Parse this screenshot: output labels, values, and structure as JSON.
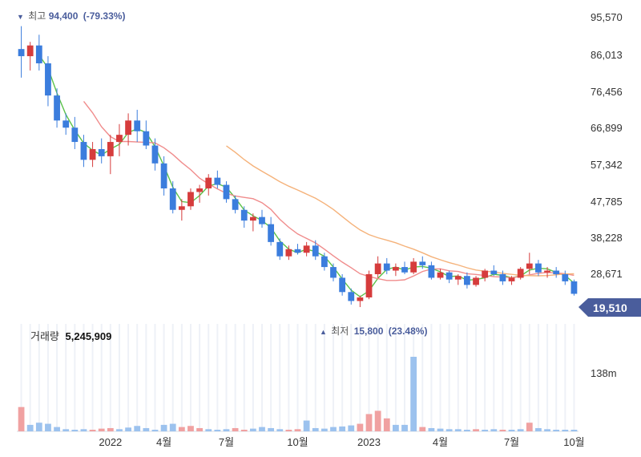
{
  "chart_data": {
    "type": "candlestick",
    "price_axis": {
      "ticks": [
        "95,570",
        "86,013",
        "76,456",
        "66,899",
        "57,342",
        "47,785",
        "38,228",
        "28,671"
      ],
      "ylim": [
        15800,
        95570
      ]
    },
    "current_price": {
      "label": "19,510",
      "value": 19510,
      "color": "#4a5d9c"
    },
    "high_annotation": {
      "marker": "▼",
      "label": "최고",
      "value": "94,400",
      "change": "(-79.33%)"
    },
    "low_annotation": {
      "marker": "▲",
      "label": "최저",
      "value": "15,800",
      "change": "(23.48%)"
    },
    "volume": {
      "label": "거래량",
      "value": "5,245,909",
      "axis_tick": "138m",
      "axis_max": 138
    },
    "x_ticks": [
      "2022",
      "4월",
      "7월",
      "10월",
      "2023",
      "4월",
      "7월",
      "10월"
    ],
    "colors": {
      "up": "#d63c3c",
      "down": "#3b7ddd",
      "ma_short": "#5cc24a",
      "ma_mid": "#f08c8c",
      "ma_long": "#f5b27a"
    },
    "candles": [
      [
        88000,
        94400,
        80000,
        86000
      ],
      [
        86000,
        90000,
        82000,
        89000
      ],
      [
        89000,
        92000,
        82000,
        84000
      ],
      [
        84000,
        86000,
        72000,
        75000
      ],
      [
        75000,
        77000,
        66000,
        68000
      ],
      [
        68000,
        70000,
        64000,
        66000
      ],
      [
        66000,
        69000,
        60000,
        62000
      ],
      [
        62000,
        64000,
        55000,
        57000
      ],
      [
        57000,
        62000,
        55000,
        60000
      ],
      [
        60000,
        63000,
        56000,
        58000
      ],
      [
        58000,
        64000,
        53000,
        62000
      ],
      [
        62000,
        67000,
        58000,
        64000
      ],
      [
        64000,
        70000,
        61000,
        68000
      ],
      [
        68000,
        71000,
        62000,
        65000
      ],
      [
        65000,
        68000,
        60000,
        61000
      ],
      [
        61000,
        63000,
        54000,
        56000
      ],
      [
        56000,
        58000,
        47000,
        49000
      ],
      [
        49000,
        51000,
        42000,
        43000
      ],
      [
        43000,
        46000,
        40000,
        44000
      ],
      [
        44000,
        49000,
        43000,
        48000
      ],
      [
        48000,
        50000,
        45000,
        49000
      ],
      [
        49000,
        53000,
        47000,
        52000
      ],
      [
        52000,
        54000,
        49000,
        50000
      ],
      [
        50000,
        51000,
        45000,
        46000
      ],
      [
        46000,
        47000,
        42000,
        43000
      ],
      [
        43000,
        44000,
        38000,
        40000
      ],
      [
        40000,
        42000,
        37000,
        41000
      ],
      [
        41000,
        43000,
        38000,
        39000
      ],
      [
        39000,
        41000,
        33000,
        34000
      ],
      [
        34000,
        35000,
        29000,
        30000
      ],
      [
        30000,
        33000,
        29000,
        32000
      ],
      [
        32000,
        33500,
        30500,
        31000
      ],
      [
        31000,
        34000,
        30000,
        33000
      ],
      [
        33000,
        34500,
        29000,
        30000
      ],
      [
        30000,
        31000,
        26000,
        27000
      ],
      [
        27000,
        28000,
        23000,
        24000
      ],
      [
        24000,
        25000,
        19000,
        20000
      ],
      [
        20000,
        21000,
        16500,
        17500
      ],
      [
        17500,
        19000,
        15800,
        18500
      ],
      [
        18500,
        26000,
        18000,
        25000
      ],
      [
        25000,
        30000,
        24000,
        28000
      ],
      [
        28000,
        29500,
        25000,
        26000
      ],
      [
        26000,
        28000,
        24500,
        27000
      ],
      [
        27000,
        28500,
        25000,
        25500
      ],
      [
        25500,
        29500,
        25000,
        28500
      ],
      [
        28500,
        30000,
        26500,
        27500
      ],
      [
        27500,
        28500,
        23500,
        24000
      ],
      [
        24000,
        26500,
        23500,
        25500
      ],
      [
        25500,
        26000,
        22500,
        23500
      ],
      [
        23500,
        25000,
        22000,
        24500
      ],
      [
        24500,
        25500,
        21000,
        22000
      ],
      [
        22000,
        24500,
        21500,
        24000
      ],
      [
        24000,
        26500,
        23000,
        26000
      ],
      [
        26000,
        27500,
        24500,
        25000
      ],
      [
        25000,
        26000,
        22000,
        23000
      ],
      [
        23000,
        24500,
        22000,
        24000
      ],
      [
        24000,
        27000,
        23500,
        26500
      ],
      [
        26500,
        31000,
        25000,
        28000
      ],
      [
        28000,
        29000,
        24500,
        25500
      ],
      [
        25500,
        27000,
        24000,
        26000
      ],
      [
        26000,
        27000,
        24000,
        25000
      ],
      [
        25000,
        26000,
        22000,
        23000
      ],
      [
        23000,
        23500,
        19000,
        19510
      ]
    ],
    "volume_bars": [
      [
        45,
        "up"
      ],
      [
        12,
        "down"
      ],
      [
        16,
        "down"
      ],
      [
        14,
        "down"
      ],
      [
        8,
        "down"
      ],
      [
        4,
        "down"
      ],
      [
        3,
        "down"
      ],
      [
        4,
        "down"
      ],
      [
        3,
        "up"
      ],
      [
        5,
        "up"
      ],
      [
        6,
        "up"
      ],
      [
        4,
        "down"
      ],
      [
        7,
        "down"
      ],
      [
        10,
        "down"
      ],
      [
        6,
        "down"
      ],
      [
        3,
        "down"
      ],
      [
        12,
        "down"
      ],
      [
        14,
        "down"
      ],
      [
        8,
        "up"
      ],
      [
        10,
        "up"
      ],
      [
        6,
        "up"
      ],
      [
        4,
        "down"
      ],
      [
        3,
        "down"
      ],
      [
        4,
        "down"
      ],
      [
        6,
        "up"
      ],
      [
        3,
        "up"
      ],
      [
        5,
        "down"
      ],
      [
        8,
        "down"
      ],
      [
        6,
        "down"
      ],
      [
        4,
        "down"
      ],
      [
        3,
        "up"
      ],
      [
        4,
        "up"
      ],
      [
        20,
        "down"
      ],
      [
        6,
        "down"
      ],
      [
        5,
        "down"
      ],
      [
        8,
        "down"
      ],
      [
        9,
        "down"
      ],
      [
        11,
        "down"
      ],
      [
        14,
        "up"
      ],
      [
        32,
        "up"
      ],
      [
        38,
        "up"
      ],
      [
        24,
        "up"
      ],
      [
        12,
        "down"
      ],
      [
        12,
        "down"
      ],
      [
        138,
        "down"
      ],
      [
        8,
        "up"
      ],
      [
        6,
        "down"
      ],
      [
        5,
        "down"
      ],
      [
        4,
        "down"
      ],
      [
        4,
        "down"
      ],
      [
        3,
        "down"
      ],
      [
        4,
        "up"
      ],
      [
        3,
        "down"
      ],
      [
        4,
        "down"
      ],
      [
        3,
        "up"
      ],
      [
        3,
        "down"
      ],
      [
        4,
        "down"
      ],
      [
        16,
        "up"
      ],
      [
        6,
        "down"
      ],
      [
        4,
        "down"
      ],
      [
        3,
        "down"
      ],
      [
        3,
        "down"
      ],
      [
        3,
        "down"
      ]
    ]
  }
}
